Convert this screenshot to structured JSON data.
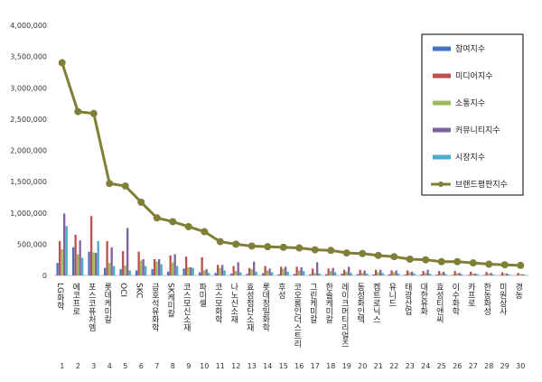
{
  "chart_data": {
    "type": "bar",
    "title": "",
    "xlabel": "",
    "ylabel": "",
    "ylim": [
      0,
      4000000
    ],
    "y_ticks": [
      "0",
      "500,000",
      "1,000,000",
      "1,500,000",
      "2,000,000",
      "2,500,000",
      "3,000,000",
      "3,500,000",
      "4,000,000"
    ],
    "grid": false,
    "legend_position": "top-right",
    "ranks": [
      "1",
      "2",
      "3",
      "4",
      "5",
      "6",
      "7",
      "8",
      "9",
      "10",
      "11",
      "12",
      "13",
      "14",
      "15",
      "16",
      "17",
      "18",
      "19",
      "20",
      "21",
      "22",
      "23",
      "24",
      "25",
      "26",
      "27",
      "28",
      "29",
      "30"
    ],
    "categories": [
      "LG화학",
      "에코프로",
      "포스코퓨처엠",
      "롯데케미칼",
      "OCI",
      "SKC",
      "금호석유화학",
      "SK케미칼",
      "코스모신소재",
      "파미셀",
      "코스모화학",
      "나노신소재",
      "효성첨단소재",
      "롯데정밀화학",
      "후성",
      "코오롱인더스트리",
      "그린케미칼",
      "한솔케미칼",
      "레이크머티리얼즈",
      "동성화인텍",
      "켐트로닉스",
      "유니드",
      "태광산업",
      "대한유화",
      "효성티앤씨",
      "이수화학",
      "카프로",
      "한농화성",
      "미원상사",
      "경농"
    ],
    "series": [
      {
        "name": "참여지수",
        "color": "#4472c4",
        "values": [
          200000,
          450000,
          380000,
          120000,
          100000,
          80000,
          100000,
          60000,
          110000,
          50000,
          40000,
          30000,
          25000,
          35000,
          20000,
          25000,
          20000,
          20000,
          30000,
          20000,
          15000,
          20000,
          15000,
          15000,
          12000,
          10000,
          10000,
          8000,
          8000,
          6000
        ]
      },
      {
        "name": "미디어지수",
        "color": "#c0504d",
        "values": [
          550000,
          650000,
          950000,
          550000,
          390000,
          380000,
          260000,
          320000,
          300000,
          290000,
          170000,
          150000,
          120000,
          150000,
          140000,
          140000,
          110000,
          110000,
          90000,
          90000,
          90000,
          80000,
          80000,
          70000,
          70000,
          70000,
          60000,
          55000,
          50000,
          40000
        ]
      },
      {
        "name": "소통지수",
        "color": "#9bbb59",
        "values": [
          420000,
          340000,
          370000,
          200000,
          160000,
          240000,
          220000,
          210000,
          130000,
          80000,
          120000,
          70000,
          100000,
          80000,
          110000,
          80000,
          40000,
          70000,
          60000,
          40000,
          50000,
          50000,
          50000,
          40000,
          40000,
          35000,
          30000,
          30000,
          25000,
          20000
        ]
      },
      {
        "name": "커뮤니티지수",
        "color": "#8064a2",
        "values": [
          990000,
          560000,
          360000,
          450000,
          760000,
          260000,
          260000,
          340000,
          130000,
          100000,
          170000,
          210000,
          220000,
          110000,
          140000,
          130000,
          210000,
          120000,
          140000,
          80000,
          90000,
          80000,
          60000,
          90000,
          60000,
          40000,
          30000,
          40000,
          30000,
          20000
        ]
      },
      {
        "name": "시장지수",
        "color": "#4bacc6",
        "values": [
          790000,
          280000,
          550000,
          150000,
          80000,
          150000,
          180000,
          150000,
          120000,
          40000,
          80000,
          50000,
          60000,
          50000,
          60000,
          70000,
          30000,
          50000,
          40000,
          30000,
          40000,
          30000,
          30000,
          25000,
          20000,
          20000,
          20000,
          15000,
          15000,
          10000
        ]
      },
      {
        "name": "브랜드평판지수",
        "color": "#7f7f38",
        "style": "line",
        "values": [
          3400000,
          2620000,
          2590000,
          1470000,
          1430000,
          1170000,
          920000,
          860000,
          780000,
          700000,
          540000,
          500000,
          470000,
          460000,
          450000,
          440000,
          410000,
          400000,
          360000,
          350000,
          320000,
          300000,
          260000,
          250000,
          220000,
          220000,
          200000,
          180000,
          170000,
          160000
        ]
      }
    ]
  }
}
